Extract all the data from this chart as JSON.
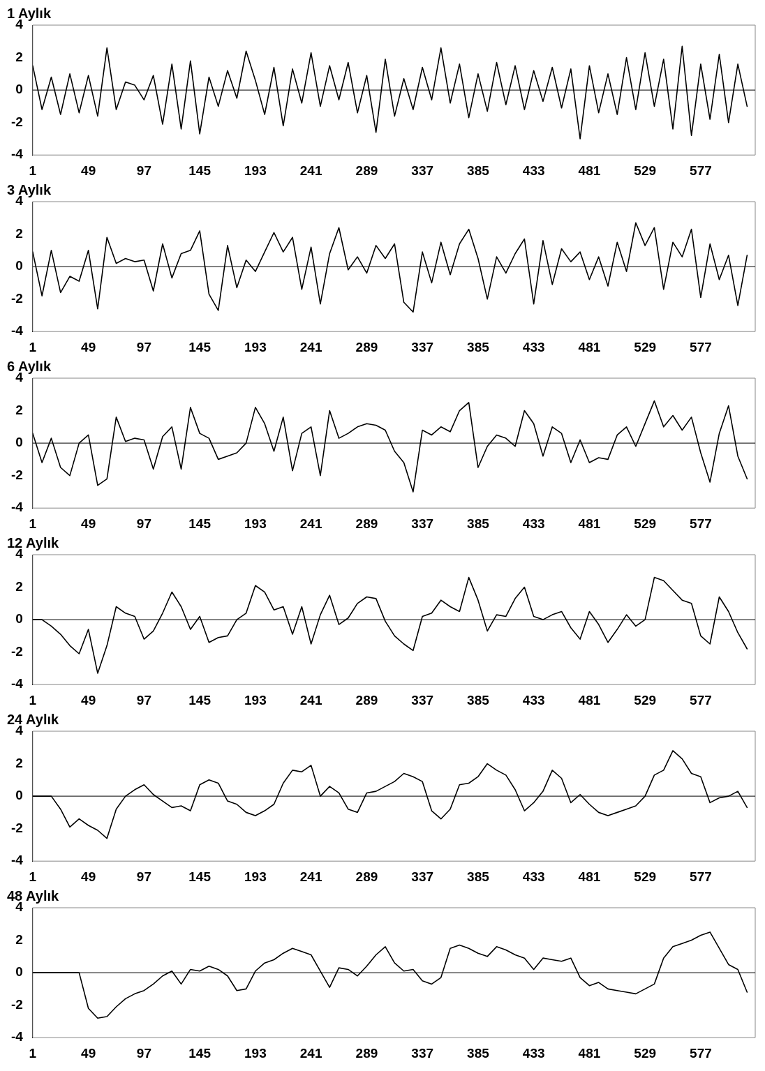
{
  "chart_data": [
    {
      "type": "line",
      "title": "1 Aylık",
      "ref_lines": [
        {
          "axis": "y",
          "value": 0
        }
      ],
      "color": "#000000",
      "xlim": [
        1,
        624
      ],
      "xticks": [
        1,
        49,
        97,
        145,
        193,
        241,
        289,
        337,
        385,
        433,
        481,
        529,
        577
      ],
      "ylim": [
        -4,
        4
      ],
      "yticks": [
        -4,
        -2,
        0,
        2,
        4
      ],
      "x": [
        1,
        9,
        17,
        25,
        33,
        41,
        49,
        57,
        65,
        73,
        81,
        89,
        97,
        105,
        113,
        121,
        129,
        137,
        145,
        153,
        161,
        169,
        177,
        185,
        193,
        201,
        209,
        217,
        225,
        233,
        241,
        249,
        257,
        265,
        273,
        281,
        289,
        297,
        305,
        313,
        321,
        329,
        337,
        345,
        353,
        361,
        369,
        377,
        385,
        393,
        401,
        409,
        417,
        425,
        433,
        441,
        449,
        457,
        465,
        473,
        481,
        489,
        497,
        505,
        513,
        521,
        529,
        537,
        545,
        553,
        561,
        569,
        577,
        585,
        593,
        601,
        609,
        617
      ],
      "values": [
        1.5,
        -1.2,
        0.8,
        -1.5,
        1.0,
        -1.4,
        0.9,
        -1.6,
        2.6,
        -1.2,
        0.5,
        0.3,
        -0.6,
        0.9,
        -2.1,
        1.6,
        -2.4,
        1.8,
        -2.7,
        0.8,
        -1.0,
        1.2,
        -0.5,
        2.4,
        0.6,
        -1.5,
        1.4,
        -2.2,
        1.3,
        -0.8,
        2.3,
        -1.0,
        1.5,
        -0.6,
        1.7,
        -1.4,
        0.9,
        -2.6,
        1.9,
        -1.6,
        0.7,
        -1.2,
        1.4,
        -0.6,
        2.6,
        -0.8,
        1.6,
        -1.7,
        1.0,
        -1.3,
        1.7,
        -0.9,
        1.5,
        -1.2,
        1.2,
        -0.7,
        1.4,
        -1.1,
        1.3,
        -3.0,
        1.5,
        -1.4,
        1.0,
        -1.5,
        2.0,
        -1.2,
        2.3,
        -1.0,
        1.9,
        -2.4,
        2.7,
        -2.8,
        1.6,
        -1.8,
        2.2,
        -2.0,
        1.6,
        -1.0
      ]
    },
    {
      "type": "line",
      "title": "3 Aylık",
      "ref_lines": [
        {
          "axis": "y",
          "value": 0
        }
      ],
      "color": "#000000",
      "xlim": [
        1,
        624
      ],
      "xticks": [
        1,
        49,
        97,
        145,
        193,
        241,
        289,
        337,
        385,
        433,
        481,
        529,
        577
      ],
      "ylim": [
        -4,
        4
      ],
      "yticks": [
        -4,
        -2,
        0,
        2,
        4
      ],
      "x": [
        1,
        9,
        17,
        25,
        33,
        41,
        49,
        57,
        65,
        73,
        81,
        89,
        97,
        105,
        113,
        121,
        129,
        137,
        145,
        153,
        161,
        169,
        177,
        185,
        193,
        201,
        209,
        217,
        225,
        233,
        241,
        249,
        257,
        265,
        273,
        281,
        289,
        297,
        305,
        313,
        321,
        329,
        337,
        345,
        353,
        361,
        369,
        377,
        385,
        393,
        401,
        409,
        417,
        425,
        433,
        441,
        449,
        457,
        465,
        473,
        481,
        489,
        497,
        505,
        513,
        521,
        529,
        537,
        545,
        553,
        561,
        569,
        577,
        585,
        593,
        601,
        609,
        617
      ],
      "values": [
        0.9,
        -1.8,
        1.0,
        -1.6,
        -0.6,
        -0.9,
        1.0,
        -2.6,
        1.8,
        0.2,
        0.5,
        0.3,
        0.4,
        -1.5,
        1.4,
        -0.7,
        0.8,
        1.0,
        2.2,
        -1.7,
        -2.7,
        1.3,
        -1.3,
        0.4,
        -0.3,
        0.9,
        2.1,
        0.9,
        1.8,
        -1.4,
        1.2,
        -2.3,
        0.8,
        2.4,
        -0.2,
        0.6,
        -0.4,
        1.3,
        0.5,
        1.4,
        -2.2,
        -2.8,
        0.9,
        -1.0,
        1.5,
        -0.5,
        1.4,
        2.3,
        0.5,
        -2.0,
        0.6,
        -0.4,
        0.8,
        1.7,
        -2.3,
        1.6,
        -1.1,
        1.1,
        0.3,
        0.9,
        -0.8,
        0.6,
        -1.2,
        1.5,
        -0.3,
        2.7,
        1.3,
        2.4,
        -1.4,
        1.5,
        0.6,
        2.3,
        -1.9,
        1.4,
        -0.8,
        0.7,
        -2.4,
        0.7
      ]
    },
    {
      "type": "line",
      "title": "6 Aylık",
      "ref_lines": [
        {
          "axis": "y",
          "value": 0
        }
      ],
      "color": "#000000",
      "xlim": [
        1,
        624
      ],
      "xticks": [
        1,
        49,
        97,
        145,
        193,
        241,
        289,
        337,
        385,
        433,
        481,
        529,
        577
      ],
      "ylim": [
        -4,
        4
      ],
      "yticks": [
        -4,
        -2,
        0,
        2,
        4
      ],
      "x": [
        1,
        9,
        17,
        25,
        33,
        41,
        49,
        57,
        65,
        73,
        81,
        89,
        97,
        105,
        113,
        121,
        129,
        137,
        145,
        153,
        161,
        169,
        177,
        185,
        193,
        201,
        209,
        217,
        225,
        233,
        241,
        249,
        257,
        265,
        273,
        281,
        289,
        297,
        305,
        313,
        321,
        329,
        337,
        345,
        353,
        361,
        369,
        377,
        385,
        393,
        401,
        409,
        417,
        425,
        433,
        441,
        449,
        457,
        465,
        473,
        481,
        489,
        497,
        505,
        513,
        521,
        529,
        537,
        545,
        553,
        561,
        569,
        577,
        585,
        593,
        601,
        609,
        617
      ],
      "values": [
        0.6,
        -1.2,
        0.3,
        -1.5,
        -2.0,
        0.0,
        0.5,
        -2.6,
        -2.2,
        1.6,
        0.1,
        0.3,
        0.2,
        -1.6,
        0.4,
        1.0,
        -1.6,
        2.2,
        0.6,
        0.3,
        -1.0,
        -0.8,
        -0.6,
        0.0,
        2.2,
        1.2,
        -0.5,
        1.6,
        -1.7,
        0.6,
        1.0,
        -2.0,
        2.0,
        0.3,
        0.6,
        1.0,
        1.2,
        1.1,
        0.8,
        -0.5,
        -1.2,
        -3.0,
        0.8,
        0.5,
        1.0,
        0.7,
        2.0,
        2.5,
        -1.5,
        -0.2,
        0.5,
        0.3,
        -0.2,
        2.0,
        1.2,
        -0.8,
        1.0,
        0.6,
        -1.2,
        0.2,
        -1.2,
        -0.9,
        -1.0,
        0.5,
        1.0,
        -0.2,
        1.2,
        2.6,
        1.0,
        1.7,
        0.8,
        1.6,
        -0.6,
        -2.4,
        0.6,
        2.3,
        -0.8,
        -2.2
      ]
    },
    {
      "type": "line",
      "title": "12 Aylık",
      "ref_lines": [
        {
          "axis": "y",
          "value": 0
        }
      ],
      "color": "#000000",
      "xlim": [
        1,
        624
      ],
      "xticks": [
        1,
        49,
        97,
        145,
        193,
        241,
        289,
        337,
        385,
        433,
        481,
        529,
        577
      ],
      "ylim": [
        -4,
        4
      ],
      "yticks": [
        -4,
        -2,
        0,
        2,
        4
      ],
      "x": [
        1,
        9,
        17,
        25,
        33,
        41,
        49,
        57,
        65,
        73,
        81,
        89,
        97,
        105,
        113,
        121,
        129,
        137,
        145,
        153,
        161,
        169,
        177,
        185,
        193,
        201,
        209,
        217,
        225,
        233,
        241,
        249,
        257,
        265,
        273,
        281,
        289,
        297,
        305,
        313,
        321,
        329,
        337,
        345,
        353,
        361,
        369,
        377,
        385,
        393,
        401,
        409,
        417,
        425,
        433,
        441,
        449,
        457,
        465,
        473,
        481,
        489,
        497,
        505,
        513,
        521,
        529,
        537,
        545,
        553,
        561,
        569,
        577,
        585,
        593,
        601,
        609,
        617
      ],
      "values": [
        0,
        0,
        -0.4,
        -0.9,
        -1.6,
        -2.1,
        -0.6,
        -3.3,
        -1.6,
        0.8,
        0.4,
        0.2,
        -1.2,
        -0.7,
        0.4,
        1.7,
        0.8,
        -0.6,
        0.2,
        -1.4,
        -1.1,
        -1.0,
        0.0,
        0.4,
        2.1,
        1.7,
        0.6,
        0.8,
        -0.9,
        0.8,
        -1.5,
        0.3,
        1.5,
        -0.3,
        0.1,
        1.0,
        1.4,
        1.3,
        -0.1,
        -1.0,
        -1.5,
        -1.9,
        0.2,
        0.4,
        1.2,
        0.8,
        0.5,
        2.6,
        1.2,
        -0.7,
        0.3,
        0.2,
        1.3,
        2.0,
        0.2,
        0.0,
        0.3,
        0.5,
        -0.5,
        -1.2,
        0.5,
        -0.3,
        -1.4,
        -0.6,
        0.3,
        -0.4,
        0.0,
        2.6,
        2.4,
        1.8,
        1.2,
        1.0,
        -1.0,
        -1.5,
        1.4,
        0.5,
        -0.8,
        -1.8
      ]
    },
    {
      "type": "line",
      "title": "24 Aylık",
      "ref_lines": [
        {
          "axis": "y",
          "value": 0
        }
      ],
      "color": "#000000",
      "xlim": [
        1,
        624
      ],
      "xticks": [
        1,
        49,
        97,
        145,
        193,
        241,
        289,
        337,
        385,
        433,
        481,
        529,
        577
      ],
      "ylim": [
        -4,
        4
      ],
      "yticks": [
        -4,
        -2,
        0,
        2,
        4
      ],
      "x": [
        1,
        9,
        17,
        25,
        33,
        41,
        49,
        57,
        65,
        73,
        81,
        89,
        97,
        105,
        113,
        121,
        129,
        137,
        145,
        153,
        161,
        169,
        177,
        185,
        193,
        201,
        209,
        217,
        225,
        233,
        241,
        249,
        257,
        265,
        273,
        281,
        289,
        297,
        305,
        313,
        321,
        329,
        337,
        345,
        353,
        361,
        369,
        377,
        385,
        393,
        401,
        409,
        417,
        425,
        433,
        441,
        449,
        457,
        465,
        473,
        481,
        489,
        497,
        505,
        513,
        521,
        529,
        537,
        545,
        553,
        561,
        569,
        577,
        585,
        593,
        601,
        609,
        617
      ],
      "values": [
        0,
        0,
        0,
        -0.8,
        -1.9,
        -1.4,
        -1.8,
        -2.1,
        -2.6,
        -0.8,
        0.0,
        0.4,
        0.7,
        0.1,
        -0.3,
        -0.7,
        -0.6,
        -0.9,
        0.7,
        1.0,
        0.8,
        -0.3,
        -0.5,
        -1.0,
        -1.2,
        -0.9,
        -0.5,
        0.8,
        1.6,
        1.5,
        1.9,
        0.0,
        0.6,
        0.2,
        -0.8,
        -1.0,
        0.2,
        0.3,
        0.6,
        0.9,
        1.4,
        1.2,
        0.9,
        -0.9,
        -1.4,
        -0.8,
        0.7,
        0.8,
        1.2,
        2.0,
        1.6,
        1.3,
        0.4,
        -0.9,
        -0.4,
        0.3,
        1.6,
        1.1,
        -0.4,
        0.1,
        -0.5,
        -1.0,
        -1.2,
        -1.0,
        -0.8,
        -0.6,
        0.0,
        1.3,
        1.6,
        2.8,
        2.3,
        1.4,
        1.2,
        -0.4,
        -0.1,
        0.0,
        0.3,
        -0.7
      ]
    },
    {
      "type": "line",
      "title": "48 Aylık",
      "ref_lines": [
        {
          "axis": "y",
          "value": 0
        }
      ],
      "color": "#000000",
      "xlim": [
        1,
        624
      ],
      "xticks": [
        1,
        49,
        97,
        145,
        193,
        241,
        289,
        337,
        385,
        433,
        481,
        529,
        577
      ],
      "ylim": [
        -4,
        4
      ],
      "yticks": [
        -4,
        -2,
        0,
        2,
        4
      ],
      "x": [
        1,
        9,
        17,
        25,
        33,
        41,
        49,
        57,
        65,
        73,
        81,
        89,
        97,
        105,
        113,
        121,
        129,
        137,
        145,
        153,
        161,
        169,
        177,
        185,
        193,
        201,
        209,
        217,
        225,
        233,
        241,
        249,
        257,
        265,
        273,
        281,
        289,
        297,
        305,
        313,
        321,
        329,
        337,
        345,
        353,
        361,
        369,
        377,
        385,
        393,
        401,
        409,
        417,
        425,
        433,
        441,
        449,
        457,
        465,
        473,
        481,
        489,
        497,
        505,
        513,
        521,
        529,
        537,
        545,
        553,
        561,
        569,
        577,
        585,
        593,
        601,
        609,
        617
      ],
      "values": [
        0,
        0,
        0,
        0,
        0,
        0,
        -2.2,
        -2.8,
        -2.7,
        -2.1,
        -1.6,
        -1.3,
        -1.1,
        -0.7,
        -0.2,
        0.1,
        -0.7,
        0.2,
        0.1,
        0.4,
        0.2,
        -0.2,
        -1.1,
        -1.0,
        0.1,
        0.6,
        0.8,
        1.2,
        1.5,
        1.3,
        1.1,
        0.1,
        -0.9,
        0.3,
        0.2,
        -0.2,
        0.4,
        1.1,
        1.6,
        0.6,
        0.1,
        0.2,
        -0.5,
        -0.7,
        -0.3,
        1.5,
        1.7,
        1.5,
        1.2,
        1.0,
        1.6,
        1.4,
        1.1,
        0.9,
        0.2,
        0.9,
        0.8,
        0.7,
        0.9,
        -0.3,
        -0.8,
        -0.6,
        -1.0,
        -1.1,
        -1.2,
        -1.3,
        -1.0,
        -0.7,
        0.9,
        1.6,
        1.8,
        2.0,
        2.3,
        2.5,
        1.5,
        0.5,
        0.2,
        -1.2
      ]
    }
  ]
}
